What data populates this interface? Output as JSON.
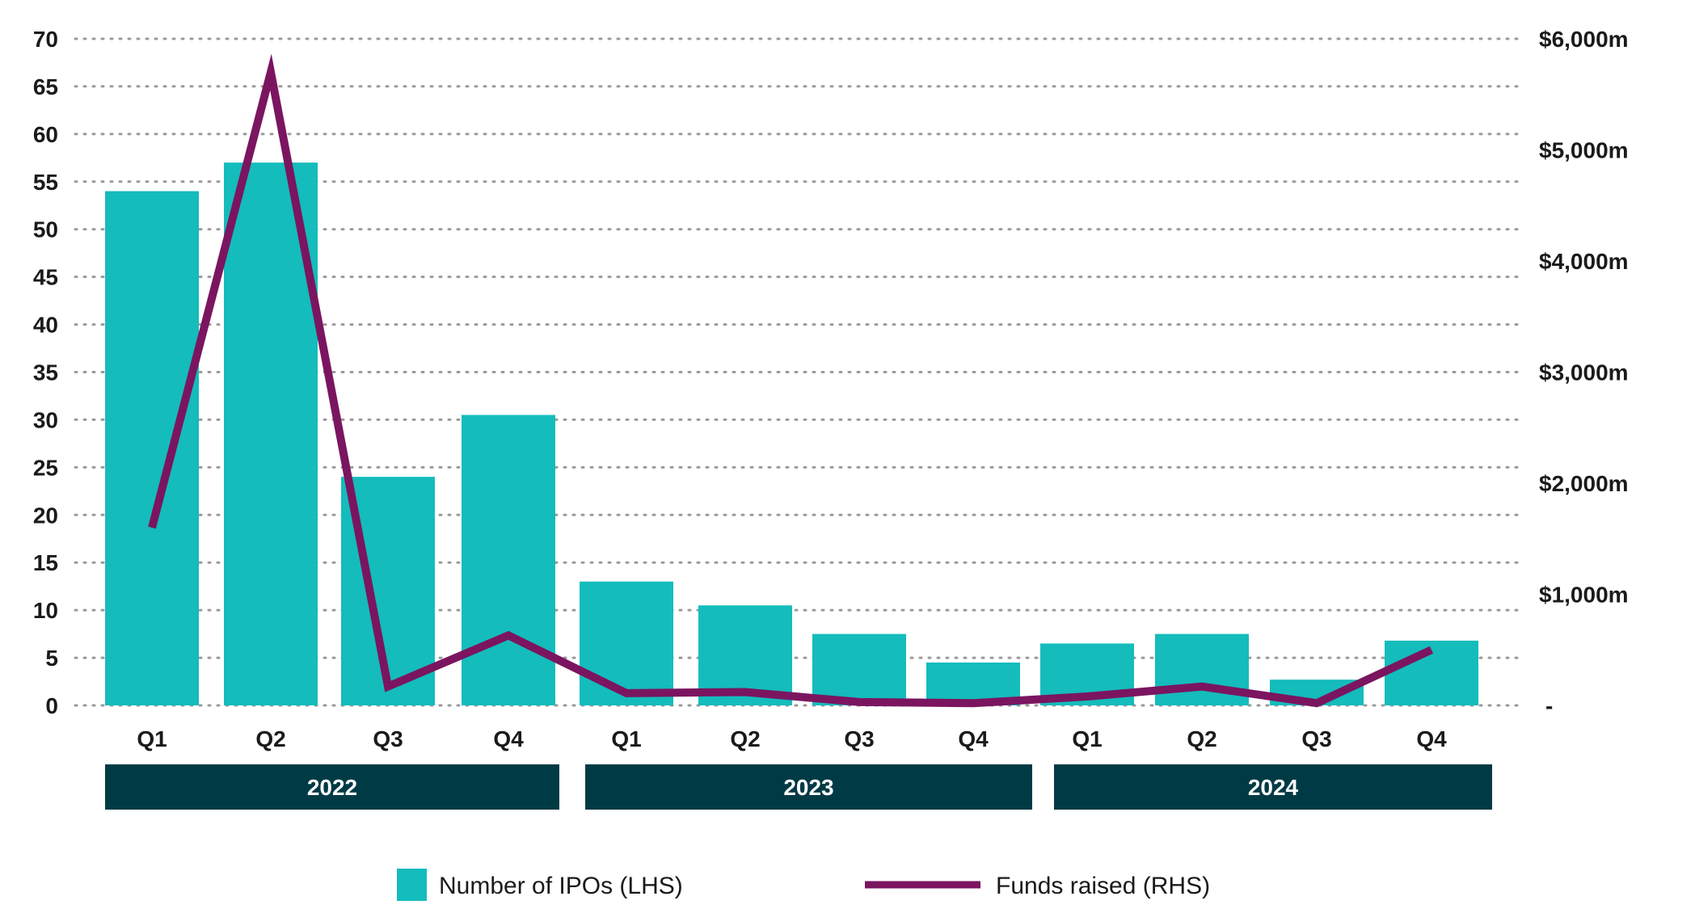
{
  "chart_data": {
    "type": "bar",
    "categories": [
      "Q1",
      "Q2",
      "Q3",
      "Q4",
      "Q1",
      "Q2",
      "Q3",
      "Q4",
      "Q1",
      "Q2",
      "Q3",
      "Q4"
    ],
    "groups": [
      {
        "label": "2022",
        "start": 0,
        "end": 3
      },
      {
        "label": "2023",
        "start": 4,
        "end": 7
      },
      {
        "label": "2024",
        "start": 8,
        "end": 11
      }
    ],
    "series": [
      {
        "name": "Number of IPOs (LHS)",
        "type": "bar",
        "axis": "left",
        "color": "#14BCBC",
        "values": [
          54,
          57,
          24,
          30.5,
          13,
          10.5,
          7.5,
          4.5,
          6.5,
          7.5,
          2.7,
          6.8
        ]
      },
      {
        "name": "Funds raised (RHS)",
        "type": "line",
        "axis": "right",
        "color": "#7B1560",
        "values": [
          1600,
          5700,
          170,
          630,
          110,
          120,
          30,
          20,
          80,
          170,
          20,
          500
        ]
      }
    ],
    "y_left": {
      "min": 0,
      "max": 70,
      "step": 5,
      "ticks": [
        "0",
        "5",
        "10",
        "15",
        "20",
        "25",
        "30",
        "35",
        "40",
        "45",
        "50",
        "55",
        "60",
        "65",
        "70"
      ]
    },
    "y_right": {
      "min": 0,
      "max": 6000,
      "step": 1000,
      "ticks": [
        "-",
        "$1,000m",
        "$2,000m",
        "$3,000m",
        "$4,000m",
        "$5,000m",
        "$6,000m"
      ]
    },
    "grid": true,
    "legend_position": "bottom",
    "colors": {
      "bar": "#14BCBC",
      "line": "#7B1560",
      "year_band": "#003A45",
      "grid": "#9a9a9a"
    }
  }
}
